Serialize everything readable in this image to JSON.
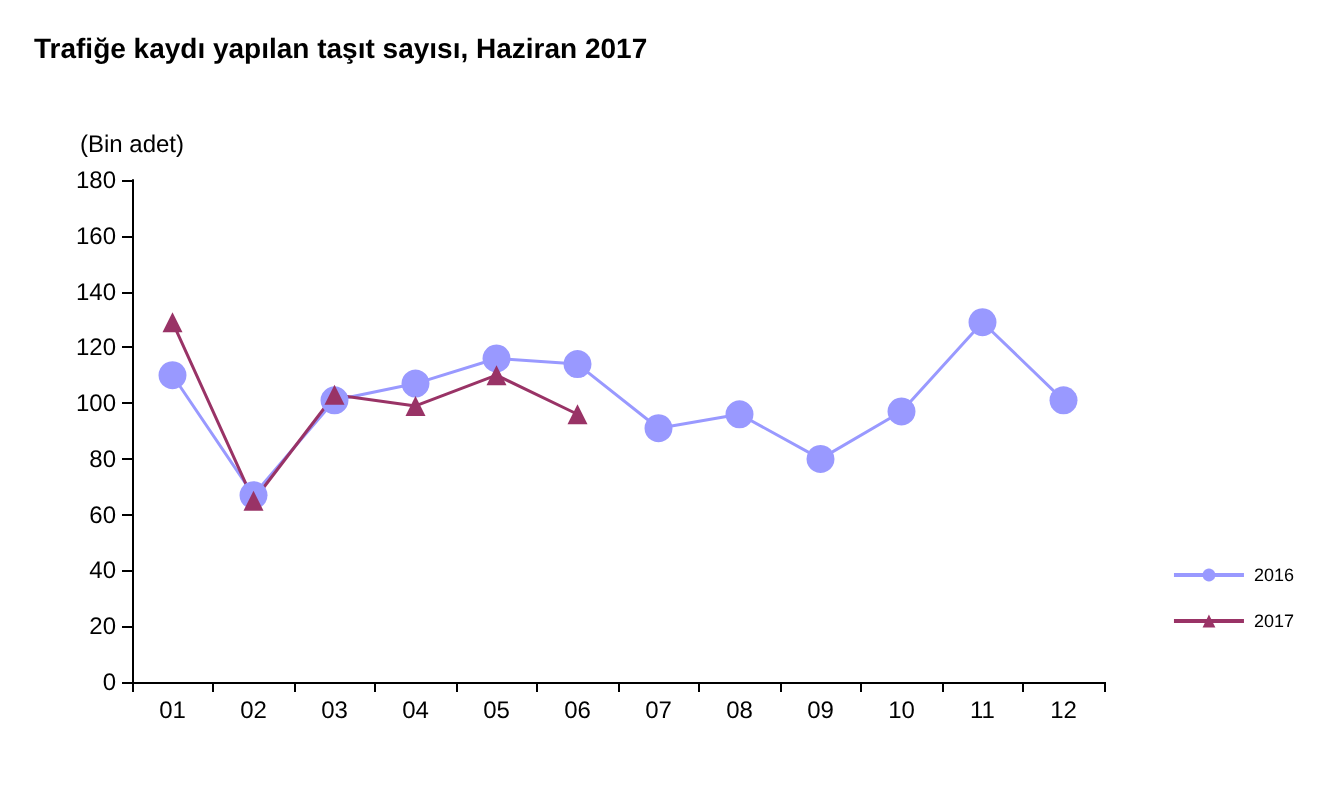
{
  "chart_data": {
    "type": "line",
    "title": "Trafiğe kaydı yapılan taşıt sayısı, Haziran 2017",
    "ylabel": "(Bin adet)",
    "categories": [
      "01",
      "02",
      "03",
      "04",
      "05",
      "06",
      "07",
      "08",
      "09",
      "10",
      "11",
      "12"
    ],
    "series": [
      {
        "name": "2016",
        "color": "#9999ff",
        "marker": "circle",
        "values": [
          110,
          67,
          101,
          107,
          116,
          114,
          91,
          96,
          80,
          97,
          129,
          101
        ]
      },
      {
        "name": "2017",
        "color": "#993366",
        "marker": "triangle",
        "values": [
          129,
          65,
          103,
          99,
          110,
          96,
          null,
          null,
          null,
          null,
          null,
          null
        ]
      }
    ],
    "ylim": [
      0,
      180
    ],
    "yticks": [
      0,
      20,
      40,
      60,
      80,
      100,
      120,
      140,
      160,
      180
    ],
    "grid": false,
    "legend": "right",
    "line_style": "solid"
  }
}
